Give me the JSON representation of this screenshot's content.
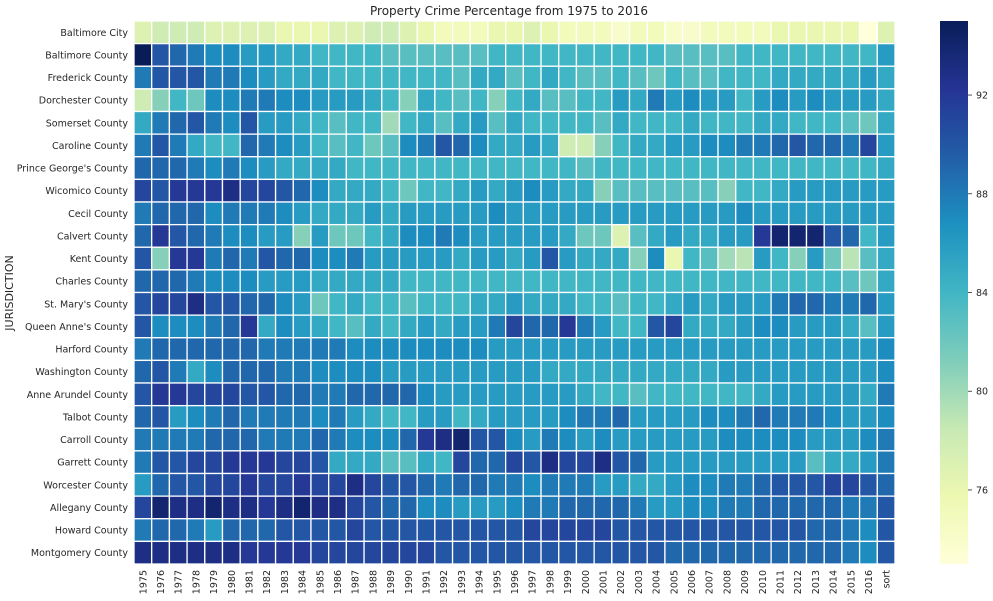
{
  "chart_data": {
    "type": "heatmap",
    "title": "Property Crime Percentage from 1975 to 2016",
    "ylabel": "JURISDICTION",
    "xlabel": "",
    "colormap": "YlGnBu",
    "vmin": 73,
    "vmax": 95,
    "colorbar_ticks": [
      76,
      80,
      84,
      88,
      92
    ],
    "columns": [
      "1975",
      "1976",
      "1977",
      "1978",
      "1979",
      "1980",
      "1981",
      "1982",
      "1983",
      "1984",
      "1985",
      "1986",
      "1987",
      "1988",
      "1989",
      "1990",
      "1991",
      "1992",
      "1993",
      "1994",
      "1995",
      "1996",
      "1997",
      "1998",
      "1999",
      "2000",
      "2001",
      "2002",
      "2003",
      "2004",
      "2005",
      "2006",
      "2007",
      "2008",
      "2009",
      "2010",
      "2011",
      "2012",
      "2013",
      "2014",
      "2015",
      "2016",
      "sort"
    ],
    "rows": [
      "Baltimore City",
      "Baltimore County",
      "Frederick County",
      "Dorchester County",
      "Somerset County",
      "Caroline County",
      "Prince George's County",
      "Wicomico County",
      "Cecil County",
      "Calvert County",
      "Kent County",
      "Charles County",
      "St. Mary's County",
      "Queen Anne's County",
      "Harford County",
      "Washington County",
      "Anne Arundel County",
      "Talbot County",
      "Carroll County",
      "Garrett County",
      "Worcester County",
      "Allegany County",
      "Howard County",
      "Montgomery County"
    ],
    "values": [
      [
        77,
        78,
        78,
        78,
        77,
        77,
        77,
        77,
        76,
        76,
        76,
        77,
        77,
        78,
        78,
        77,
        76,
        75,
        75,
        75,
        76,
        76,
        77,
        76,
        75,
        75,
        75,
        74,
        75,
        75,
        74,
        74,
        75,
        75,
        75,
        75,
        76,
        76,
        76,
        76,
        76,
        73,
        77
      ],
      [
        95,
        90,
        89,
        88,
        87,
        87,
        86,
        86,
        85,
        85,
        84,
        84,
        84,
        84,
        83,
        83,
        83,
        83,
        83,
        83,
        84,
        84,
        84,
        84,
        84,
        84,
        84,
        84,
        84,
        84,
        83,
        83,
        83,
        83,
        84,
        84,
        84,
        84,
        84,
        84,
        84,
        84,
        86
      ],
      [
        88,
        90,
        90,
        90,
        88,
        88,
        87,
        86,
        85,
        85,
        85,
        84,
        84,
        84,
        84,
        84,
        84,
        84,
        83,
        85,
        85,
        83,
        84,
        85,
        84,
        83,
        83,
        84,
        83,
        82,
        84,
        83,
        83,
        84,
        84,
        84,
        85,
        85,
        85,
        85,
        85,
        86,
        85
      ],
      [
        78,
        81,
        84,
        82,
        87,
        87,
        88,
        88,
        87,
        87,
        86,
        86,
        86,
        85,
        84,
        81,
        85,
        84,
        83,
        84,
        81,
        84,
        85,
        83,
        83,
        84,
        84,
        86,
        85,
        88,
        86,
        87,
        86,
        86,
        84,
        86,
        87,
        86,
        87,
        86,
        86,
        86,
        85
      ],
      [
        85,
        88,
        89,
        90,
        88,
        87,
        90,
        86,
        86,
        85,
        84,
        83,
        84,
        84,
        80,
        84,
        85,
        83,
        85,
        86,
        83,
        85,
        84,
        84,
        84,
        84,
        83,
        85,
        84,
        84,
        84,
        85,
        84,
        84,
        84,
        85,
        85,
        84,
        84,
        84,
        83,
        82,
        85
      ],
      [
        88,
        90,
        88,
        85,
        84,
        84,
        89,
        88,
        87,
        86,
        84,
        83,
        84,
        82,
        83,
        87,
        88,
        90,
        89,
        87,
        85,
        85,
        86,
        85,
        78,
        78,
        81,
        84,
        85,
        85,
        86,
        86,
        87,
        87,
        88,
        88,
        89,
        90,
        89,
        89,
        88,
        91,
        86
      ],
      [
        89,
        89,
        89,
        88,
        87,
        88,
        87,
        86,
        85,
        85,
        85,
        85,
        84,
        84,
        84,
        84,
        84,
        84,
        84,
        84,
        84,
        84,
        84,
        84,
        84,
        83,
        84,
        84,
        84,
        84,
        84,
        84,
        84,
        84,
        84,
        84,
        84,
        84,
        84,
        84,
        84,
        84,
        85
      ],
      [
        91,
        90,
        92,
        92,
        92,
        93,
        91,
        91,
        90,
        89,
        87,
        85,
        85,
        85,
        84,
        82,
        84,
        84,
        85,
        86,
        85,
        86,
        87,
        86,
        85,
        85,
        81,
        83,
        83,
        83,
        83,
        83,
        83,
        81,
        84,
        84,
        85,
        86,
        86,
        86,
        86,
        86,
        86
      ],
      [
        88,
        89,
        89,
        89,
        87,
        88,
        88,
        88,
        87,
        86,
        85,
        85,
        85,
        86,
        85,
        86,
        86,
        86,
        86,
        86,
        87,
        86,
        86,
        86,
        86,
        86,
        86,
        86,
        86,
        86,
        86,
        86,
        86,
        86,
        87,
        86,
        86,
        86,
        86,
        86,
        86,
        86,
        86
      ],
      [
        89,
        92,
        90,
        89,
        88,
        87,
        87,
        86,
        86,
        81,
        86,
        82,
        82,
        84,
        85,
        87,
        87,
        88,
        87,
        86,
        86,
        86,
        86,
        86,
        85,
        82,
        82,
        77,
        83,
        85,
        86,
        85,
        85,
        86,
        86,
        92,
        94,
        94,
        94,
        90,
        89,
        84,
        86
      ],
      [
        90,
        81,
        92,
        92,
        88,
        89,
        88,
        90,
        89,
        89,
        87,
        87,
        88,
        86,
        86,
        86,
        86,
        86,
        85,
        86,
        86,
        85,
        86,
        90,
        86,
        85,
        85,
        85,
        81,
        87,
        76,
        84,
        83,
        80,
        79,
        86,
        84,
        81,
        86,
        82,
        79,
        83,
        85
      ],
      [
        89,
        89,
        89,
        88,
        87,
        87,
        87,
        86,
        86,
        86,
        85,
        85,
        85,
        85,
        85,
        84,
        84,
        84,
        84,
        84,
        84,
        84,
        84,
        84,
        84,
        84,
        84,
        84,
        84,
        84,
        84,
        84,
        84,
        84,
        84,
        84,
        84,
        84,
        84,
        84,
        83,
        82,
        85
      ],
      [
        90,
        91,
        91,
        93,
        90,
        90,
        89,
        89,
        87,
        86,
        82,
        84,
        85,
        84,
        84,
        83,
        84,
        84,
        84,
        85,
        85,
        86,
        85,
        85,
        85,
        84,
        84,
        83,
        84,
        84,
        85,
        86,
        85,
        86,
        86,
        86,
        88,
        89,
        89,
        88,
        88,
        89,
        86
      ],
      [
        90,
        87,
        87,
        87,
        88,
        89,
        92,
        85,
        87,
        86,
        85,
        84,
        83,
        85,
        84,
        85,
        86,
        85,
        86,
        86,
        88,
        91,
        89,
        89,
        92,
        88,
        86,
        84,
        84,
        90,
        91,
        85,
        85,
        85,
        86,
        87,
        87,
        86,
        86,
        86,
        85,
        83,
        86
      ],
      [
        88,
        89,
        89,
        89,
        89,
        89,
        89,
        88,
        88,
        88,
        88,
        88,
        87,
        87,
        87,
        87,
        87,
        87,
        87,
        87,
        86,
        86,
        86,
        86,
        86,
        86,
        86,
        86,
        86,
        86,
        86,
        86,
        86,
        86,
        86,
        86,
        86,
        86,
        86,
        86,
        86,
        86,
        87
      ],
      [
        89,
        90,
        88,
        85,
        87,
        89,
        89,
        89,
        88,
        88,
        87,
        87,
        87,
        87,
        86,
        86,
        86,
        86,
        86,
        86,
        86,
        86,
        86,
        85,
        85,
        85,
        85,
        85,
        85,
        85,
        85,
        85,
        85,
        86,
        86,
        86,
        86,
        86,
        86,
        86,
        86,
        86,
        87
      ],
      [
        90,
        92,
        92,
        91,
        91,
        91,
        90,
        90,
        89,
        89,
        88,
        88,
        89,
        89,
        89,
        89,
        87,
        86,
        86,
        86,
        86,
        86,
        86,
        86,
        86,
        85,
        84,
        84,
        83,
        84,
        84,
        84,
        84,
        84,
        84,
        85,
        86,
        86,
        86,
        86,
        86,
        85,
        88
      ],
      [
        89,
        90,
        86,
        87,
        88,
        89,
        88,
        88,
        88,
        88,
        87,
        88,
        86,
        85,
        84,
        84,
        86,
        86,
        84,
        85,
        86,
        86,
        86,
        86,
        87,
        88,
        88,
        89,
        86,
        86,
        86,
        86,
        87,
        87,
        88,
        89,
        88,
        88,
        88,
        87,
        86,
        86,
        87
      ],
      [
        88,
        88,
        88,
        88,
        89,
        89,
        89,
        88,
        88,
        88,
        89,
        88,
        87,
        87,
        87,
        89,
        92,
        93,
        94,
        90,
        90,
        87,
        86,
        88,
        87,
        86,
        87,
        86,
        86,
        86,
        86,
        86,
        86,
        87,
        87,
        87,
        87,
        87,
        86,
        86,
        86,
        87,
        88
      ],
      [
        88,
        90,
        90,
        91,
        91,
        92,
        92,
        92,
        91,
        91,
        90,
        85,
        85,
        85,
        83,
        83,
        85,
        84,
        91,
        89,
        89,
        91,
        90,
        93,
        91,
        91,
        93,
        90,
        89,
        86,
        86,
        86,
        86,
        86,
        86,
        86,
        86,
        86,
        83,
        85,
        85,
        86,
        88
      ],
      [
        86,
        89,
        90,
        90,
        91,
        91,
        92,
        91,
        91,
        92,
        91,
        91,
        93,
        91,
        90,
        90,
        89,
        88,
        89,
        89,
        88,
        88,
        87,
        88,
        88,
        88,
        86,
        86,
        85,
        85,
        86,
        87,
        87,
        88,
        88,
        89,
        90,
        90,
        90,
        91,
        91,
        90,
        89
      ],
      [
        91,
        94,
        93,
        93,
        94,
        93,
        93,
        92,
        93,
        94,
        93,
        93,
        91,
        90,
        89,
        89,
        87,
        87,
        86,
        86,
        86,
        87,
        88,
        88,
        89,
        89,
        89,
        89,
        88,
        86,
        86,
        87,
        87,
        88,
        88,
        89,
        89,
        89,
        89,
        89,
        88,
        88,
        90
      ],
      [
        88,
        89,
        89,
        88,
        86,
        89,
        89,
        89,
        90,
        90,
        90,
        90,
        91,
        90,
        90,
        90,
        90,
        90,
        90,
        90,
        90,
        90,
        91,
        91,
        91,
        91,
        91,
        90,
        90,
        90,
        90,
        90,
        90,
        90,
        90,
        90,
        90,
        90,
        89,
        89,
        88,
        87,
        90
      ],
      [
        93,
        93,
        93,
        93,
        93,
        93,
        92,
        92,
        92,
        92,
        91,
        91,
        91,
        91,
        91,
        91,
        91,
        90,
        90,
        90,
        90,
        90,
        90,
        90,
        90,
        90,
        90,
        90,
        90,
        90,
        89,
        89,
        89,
        89,
        89,
        89,
        89,
        89,
        89,
        89,
        88,
        87,
        90
      ]
    ]
  }
}
